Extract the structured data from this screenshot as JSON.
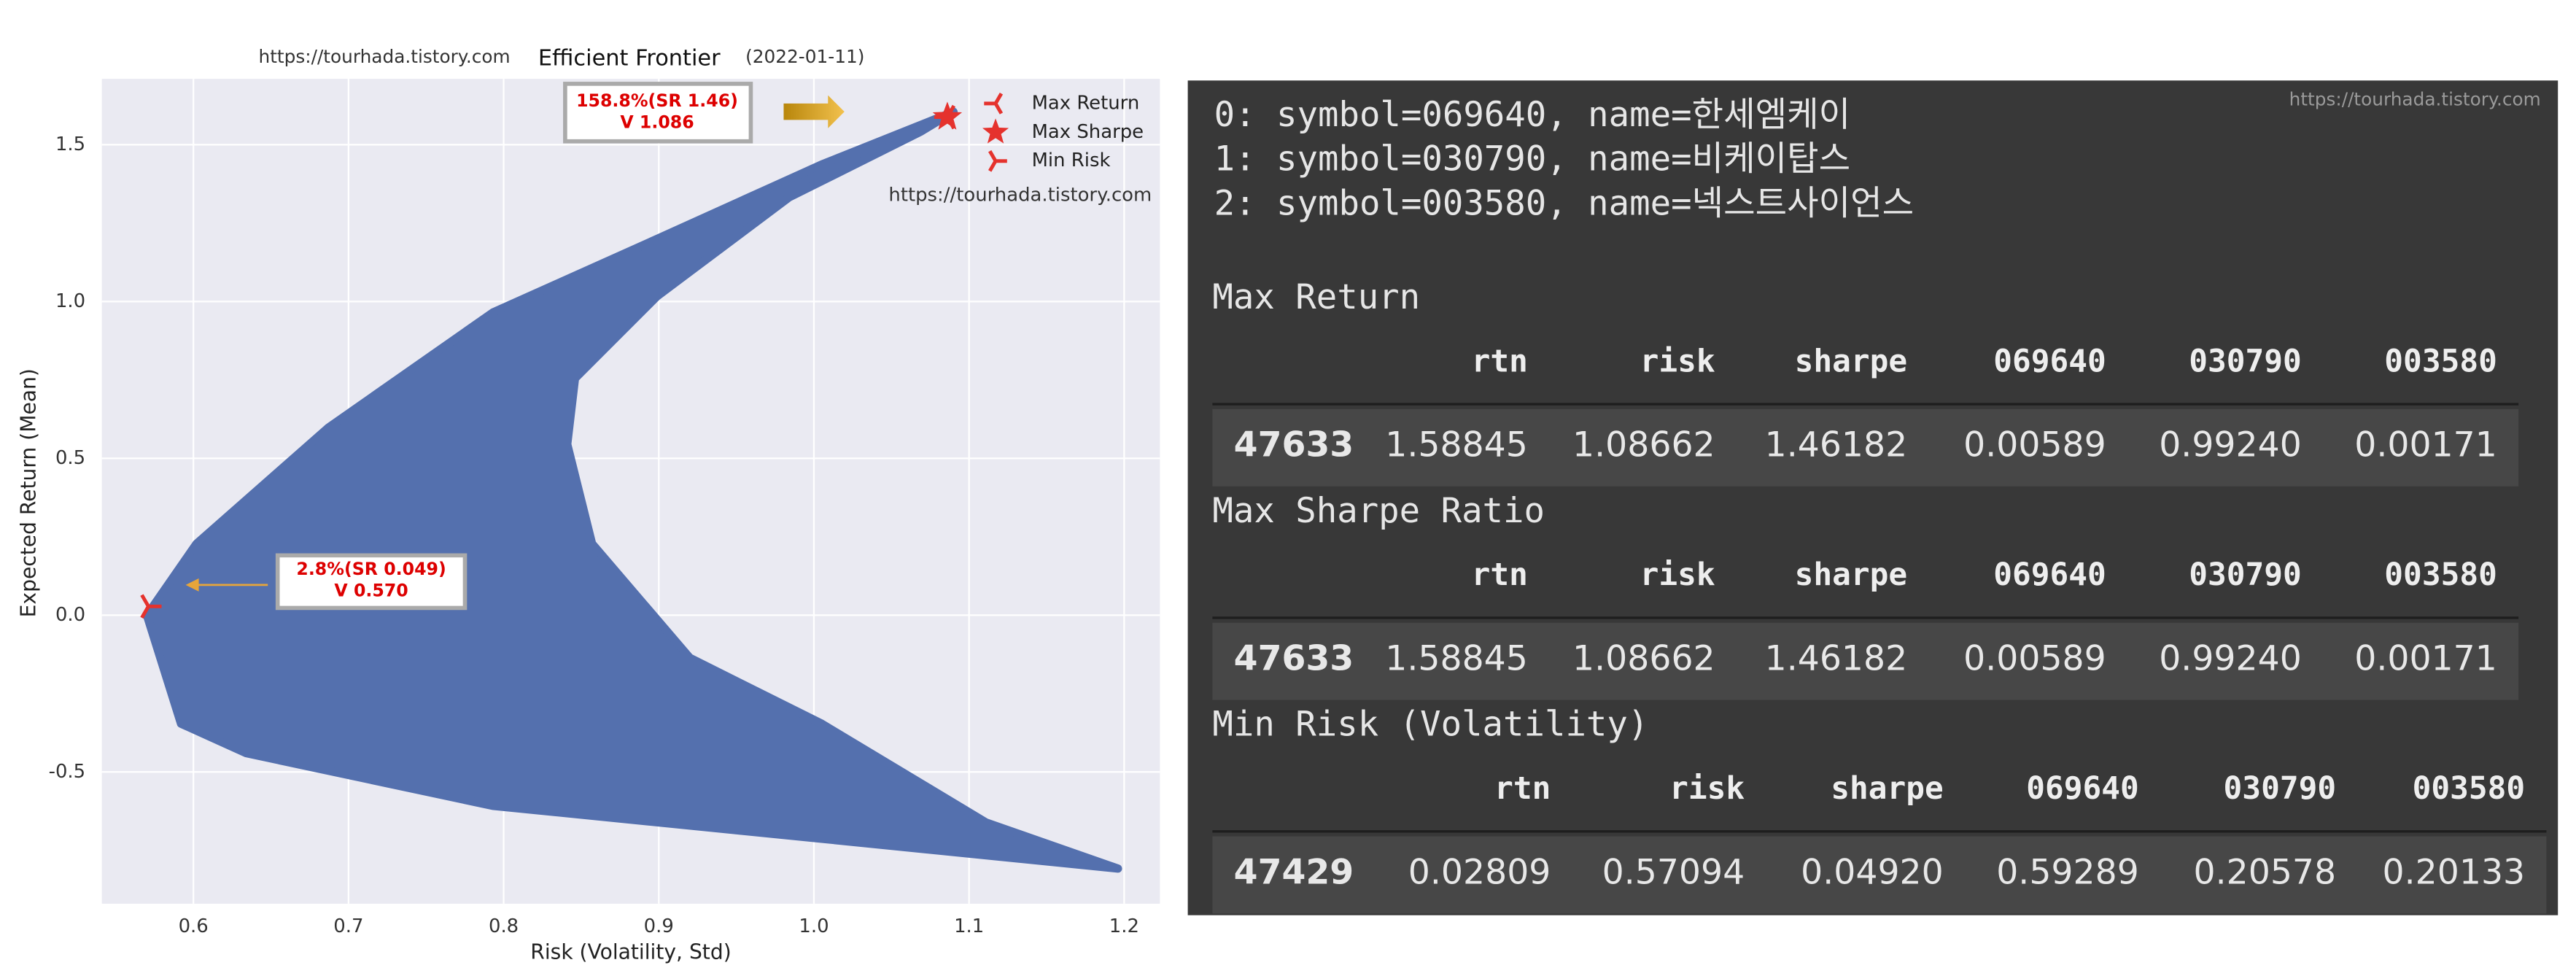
{
  "chart_data": {
    "type": "scatter",
    "title": "Efficient Frontier",
    "subtitle": "(2022-01-11)",
    "watermarks": [
      "https://tourhada.tistory.com",
      "https://tourhada.tistory.com"
    ],
    "x_label": "Risk (Volatility, Std)",
    "y_label": "Expected Return (Mean)",
    "xlim": [
      0.541,
      1.223
    ],
    "ylim": [
      -0.92,
      1.71
    ],
    "xticks": [
      0.6,
      0.7,
      0.8,
      0.9,
      {
        "value": 1,
        "label": "1.0"
      },
      1.1,
      1.2
    ],
    "yticks": [
      -0.5,
      {
        "value": 0,
        "label": "0.0"
      },
      0.5,
      {
        "value": 1,
        "label": "1.0"
      },
      1.5
    ],
    "grid": true,
    "legend": "upper right",
    "cloud": {
      "color": "#5470ae",
      "x": [
        1.09,
        1.005,
        0.899,
        0.793,
        0.687,
        0.602,
        0.57,
        0.592,
        0.634,
        0.793,
        1.005,
        1.196,
        1.111,
        1.005,
        0.92,
        0.857,
        0.841,
        0.846,
        0.899,
        0.984,
        1.069
      ],
      "y": [
        1.605,
        1.437,
        1.2,
        0.965,
        0.598,
        0.228,
        0.0,
        -0.346,
        -0.44,
        -0.608,
        -0.713,
        -0.808,
        -0.661,
        -0.346,
        -0.136,
        0.228,
        0.545,
        0.755,
        1.017,
        1.332,
        1.542
      ]
    },
    "series": [
      {
        "name": "Max Return",
        "marker": "tri_left",
        "color": "#e5322d",
        "x": [
          1.086
        ],
        "y": [
          1.588
        ]
      },
      {
        "name": "Max Sharpe",
        "marker": "star",
        "color": "#e5322d",
        "x": [
          1.086
        ],
        "y": [
          1.588
        ]
      },
      {
        "name": "Min Risk",
        "marker": "tri_right",
        "color": "#e5322d",
        "x": [
          0.571
        ],
        "y": [
          0.028
        ]
      }
    ],
    "annotations": [
      {
        "lines": [
          "158.8%(SR 1.46)",
          "V 1.086"
        ]
      },
      {
        "lines": [
          "2.8%(SR 0.049)",
          "V 0.570"
        ]
      }
    ]
  },
  "notebook": {
    "watermark": "https://tourhada.tistory.com",
    "lines": [
      "0: symbol=069640, name=한세엠케이",
      "1: symbol=030790, name=비케이탑스",
      "2: symbol=003580, name=넥스트사이언스"
    ],
    "tables": [
      {
        "title": "Max Return",
        "columns": [
          "rtn",
          "risk",
          "sharpe",
          "069640",
          "030790",
          "003580"
        ],
        "rows": [
          [
            "47633",
            "1.58845",
            "1.08662",
            "1.46182",
            "0.00589",
            "0.99240",
            "0.00171"
          ]
        ]
      },
      {
        "title": "Max Sharpe Ratio",
        "columns": [
          "rtn",
          "risk",
          "sharpe",
          "069640",
          "030790",
          "003580"
        ],
        "rows": [
          [
            "47633",
            "1.58845",
            "1.08662",
            "1.46182",
            "0.00589",
            "0.99240",
            "0.00171"
          ]
        ]
      },
      {
        "title": "Min Risk (Volatility)",
        "columns": [
          "rtn",
          "risk",
          "sharpe",
          "069640",
          "030790",
          "003580"
        ],
        "rows": [
          [
            "47429",
            "0.02809",
            "0.57094",
            "0.04920",
            "0.59289",
            "0.20578",
            "0.20133"
          ]
        ]
      }
    ]
  }
}
